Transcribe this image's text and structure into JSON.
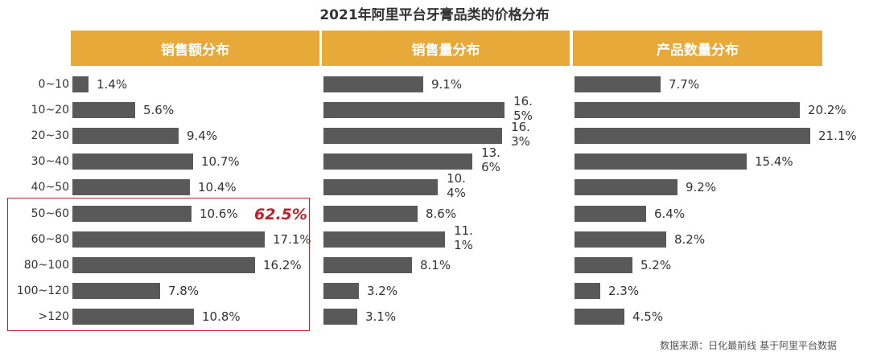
{
  "chart_data": {
    "type": "bar",
    "orientation": "horizontal",
    "title": "2021年阿里平台牙膏品类的价格分布",
    "categories": [
      "0~10",
      "10~20",
      "20~30",
      "30~40",
      "40~50",
      "50~60",
      "60~80",
      "80~100",
      "100~120",
      ">120"
    ],
    "series": [
      {
        "name": "销售额分布",
        "values": [
          1.4,
          5.6,
          9.4,
          10.7,
          10.4,
          10.6,
          17.1,
          16.2,
          7.8,
          10.8
        ]
      },
      {
        "name": "销售量分布",
        "values": [
          9.1,
          16.5,
          16.3,
          13.6,
          10.4,
          8.6,
          11.1,
          8.1,
          3.2,
          3.1
        ]
      },
      {
        "name": "产品数量分布",
        "values": [
          7.7,
          20.2,
          21.1,
          15.4,
          9.2,
          6.4,
          8.2,
          5.2,
          2.3,
          4.5
        ]
      }
    ],
    "unit": "%",
    "annotation": {
      "text": "62.5%",
      "series": "销售额分布",
      "categories": [
        "50~60",
        "60~80",
        "80~100",
        "100~120",
        ">120"
      ]
    }
  },
  "colors": {
    "header": "#E6A93A",
    "bar": "#595959",
    "highlight": "#C0202A"
  },
  "source_text": "数据来源：日化最前线 基于阿里平台数据"
}
